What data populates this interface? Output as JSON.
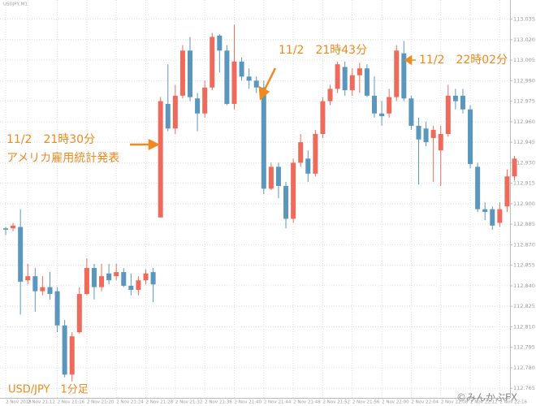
{
  "chart_data": {
    "type": "candlestick",
    "info": "USDJPY,M1",
    "caption": "USD/JPY　1分足",
    "credit": "©みんかぶFX",
    "annotations": [
      "11/2　21時30分",
      "アメリカ雇用統計発表",
      "11/2　21時43分",
      "11/2　22時02分"
    ],
    "up_color": "#ee6b5b",
    "down_color": "#5b97bd",
    "grid": true,
    "categories": [
      "2 Nov 2018",
      null,
      null,
      "2 Nov 21:12",
      null,
      null,
      null,
      "2 Nov 21:16",
      null,
      null,
      null,
      "2 Nov 21:20",
      null,
      null,
      null,
      "2 Nov 21:24",
      null,
      null,
      null,
      "2 Nov 21:28",
      null,
      null,
      null,
      "2 Nov 21:32",
      null,
      null,
      null,
      "2 Nov 21:36",
      null,
      null,
      null,
      "2 Nov 21:40",
      null,
      null,
      null,
      "2 Nov 21:44",
      null,
      null,
      null,
      "2 Nov 21:48",
      null,
      null,
      null,
      "2 Nov 21:52",
      null,
      null,
      null,
      "2 Nov 21:56",
      null,
      null,
      null,
      "2 Nov 22:00",
      null,
      null,
      null,
      "2 Nov 22:04",
      null,
      null,
      null,
      "2 Nov 22:08",
      null,
      null,
      null,
      "2 Nov 22:12",
      null,
      null,
      null,
      "2 Nov 22:16",
      null,
      null
    ],
    "open": [
      112.882,
      112.882,
      112.883,
      112.844,
      112.847,
      112.836,
      112.839,
      112.836,
      112.811,
      112.775,
      112.806,
      112.834,
      112.853,
      112.839,
      112.849,
      112.847,
      112.85,
      112.84,
      112.837,
      112.844,
      112.85,
      112.89,
      112.973,
      112.955,
      112.979,
      113.012,
      112.977,
      112.966,
      112.985,
      113.023,
      113.012,
      112.973,
      113.004,
      112.993,
      112.99,
      112.985,
      112.911,
      112.927,
      112.913,
      112.889,
      112.93,
      112.933,
      112.922,
      112.951,
      112.975,
      112.984,
      113.0,
      112.983,
      112.994,
      112.999,
      112.979,
      112.966,
      112.966,
      112.978,
      113.01,
      112.977,
      112.957,
      112.955,
      112.948,
      112.939,
      112.951,
      112.979,
      112.979,
      112.969,
      112.927,
      112.896,
      112.896,
      112.886,
      112.898,
      112.92
    ],
    "high": [
      112.883,
      112.886,
      112.896,
      112.856,
      112.853,
      112.847,
      112.85,
      112.839,
      112.815,
      112.806,
      112.839,
      112.86,
      112.856,
      112.856,
      112.856,
      112.856,
      112.853,
      112.849,
      112.847,
      112.852,
      112.853,
      112.978,
      113.002,
      112.987,
      113.016,
      113.022,
      112.981,
      112.99,
      113.025,
      113.024,
      113.016,
      113.031,
      113.007,
      112.999,
      112.993,
      112.99,
      112.93,
      112.93,
      112.916,
      112.933,
      112.951,
      112.939,
      112.954,
      112.978,
      112.987,
      113.004,
      113.004,
      112.999,
      113.003,
      113.002,
      112.993,
      112.975,
      112.984,
      113.016,
      113.019,
      112.979,
      112.963,
      112.96,
      112.957,
      112.957,
      112.987,
      112.984,
      112.984,
      112.972,
      112.93,
      112.901,
      112.898,
      112.901,
      112.925,
      112.935
    ],
    "low": [
      112.877,
      112.88,
      112.819,
      112.841,
      112.821,
      112.833,
      112.83,
      112.806,
      112.773,
      112.77,
      112.805,
      112.833,
      112.83,
      112.836,
      112.841,
      112.844,
      112.839,
      112.833,
      112.833,
      112.841,
      112.828,
      112.89,
      112.953,
      112.951,
      112.977,
      112.975,
      112.953,
      112.963,
      112.983,
      112.996,
      112.972,
      112.969,
      112.99,
      112.984,
      112.981,
      112.907,
      112.91,
      112.904,
      112.882,
      112.886,
      112.927,
      112.916,
      112.92,
      112.948,
      112.972,
      112.981,
      112.979,
      112.979,
      112.981,
      112.978,
      112.963,
      112.957,
      112.963,
      112.975,
      112.975,
      112.954,
      112.914,
      112.942,
      112.916,
      112.913,
      112.949,
      112.969,
      112.966,
      112.926,
      112.894,
      112.888,
      112.881,
      112.883,
      112.894,
      112.917
    ],
    "close": [
      112.881,
      112.884,
      112.843,
      112.847,
      112.836,
      112.839,
      112.834,
      112.811,
      112.775,
      112.803,
      112.834,
      112.853,
      112.839,
      112.847,
      112.844,
      112.85,
      112.84,
      112.837,
      112.844,
      112.849,
      112.841,
      112.975,
      112.955,
      112.979,
      113.012,
      112.978,
      112.966,
      112.985,
      113.022,
      113.012,
      112.973,
      113.004,
      112.993,
      112.99,
      112.985,
      112.911,
      112.927,
      112.913,
      112.889,
      112.93,
      112.945,
      112.922,
      112.951,
      112.975,
      112.984,
      113.002,
      112.983,
      112.994,
      112.999,
      112.979,
      112.966,
      112.964,
      112.978,
      113.012,
      112.977,
      112.957,
      112.947,
      112.945,
      112.954,
      112.951,
      112.979,
      112.975,
      112.969,
      112.929,
      112.896,
      112.894,
      112.884,
      112.896,
      112.92,
      112.933
    ],
    "ylim": [
      112.758,
      113.049
    ],
    "yticks": [
      {
        "value": 113.035,
        "label": "113.035"
      },
      {
        "value": 113.02,
        "label": "113.020"
      },
      {
        "value": 113.005,
        "label": "113.005"
      },
      {
        "value": 112.99,
        "label": "112.990"
      },
      {
        "value": 112.975,
        "label": "112.975"
      },
      {
        "value": 112.96,
        "label": "112.960"
      },
      {
        "value": 112.945,
        "label": "112.945"
      },
      {
        "value": 112.93,
        "label": "112.930"
      },
      {
        "value": 112.915,
        "label": "112.915"
      },
      {
        "value": 112.9,
        "label": "112.900"
      },
      {
        "value": 112.885,
        "label": "112.885"
      },
      {
        "value": 112.87,
        "label": "112.870"
      },
      {
        "value": 112.855,
        "label": "112.855"
      },
      {
        "value": 112.84,
        "label": "112.840"
      },
      {
        "value": 112.825,
        "label": "112.825"
      },
      {
        "value": 112.81,
        "label": "112.810"
      },
      {
        "value": 112.795,
        "label": "112.795"
      },
      {
        "value": 112.78,
        "label": "112.780"
      },
      {
        "value": 112.765,
        "label": "112.765"
      }
    ]
  }
}
